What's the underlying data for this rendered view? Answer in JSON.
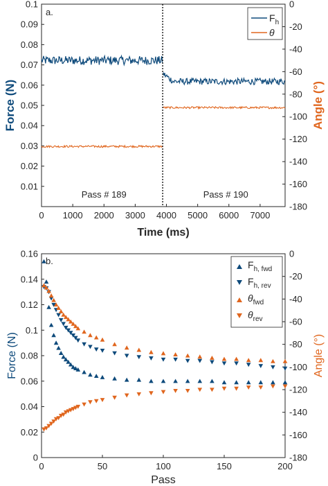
{
  "colors": {
    "blue": "#0e4a7b",
    "orange": "#e0661e",
    "axis": "#262626"
  },
  "chart_data": [
    {
      "type": "line",
      "panel_label": "a.",
      "xlabel": "Time (ms)",
      "ylabel_left": "Force (N)",
      "ylabel_right": "Angle (°)",
      "xlim": [
        0,
        7800
      ],
      "ylim_left": [
        0,
        0.1
      ],
      "ylim_right": [
        -180,
        0
      ],
      "xticks": [
        0,
        1000,
        2000,
        3000,
        4000,
        5000,
        6000,
        7000
      ],
      "xtick_labels": [
        "0",
        "1000",
        "2000",
        "3000",
        "4000",
        "5000",
        "6000",
        "7000"
      ],
      "yticks_left": [
        0.01,
        0.02,
        0.03,
        0.04,
        0.05,
        0.06,
        0.07,
        0.08,
        0.09,
        0.1
      ],
      "ytick_labels_left": [
        "0.01",
        "0.02",
        "0.03",
        "0.04",
        "0.05",
        "0.06",
        "0.07",
        "0.08",
        "0.09",
        "0.1"
      ],
      "yticks_right": [
        -180,
        -160,
        -140,
        -120,
        -100,
        -80,
        -60,
        -40,
        -20,
        0
      ],
      "ytick_labels_right": [
        "-180",
        "-160",
        "-140",
        "-120",
        "-100",
        "-80",
        "-60",
        "-40",
        "-20",
        "0"
      ],
      "divider_x": 3880,
      "annotations": [
        {
          "text": "Pass # 189",
          "x": 2000,
          "y": 0.0045
        },
        {
          "text": "Pass # 190",
          "x": 5900,
          "y": 0.0045
        }
      ],
      "legend_position": "top-right",
      "series": [
        {
          "name": "F",
          "name_sub": "h",
          "axis": "left",
          "color": "#0e4a7b",
          "segments": [
            {
              "x_start": 0,
              "x_end": 3870,
              "level": 0.0722,
              "noise": 0.0022
            },
            {
              "x_start": 3900,
              "x_end": 7800,
              "level": 0.0618,
              "noise": 0.0016
            }
          ]
        },
        {
          "name": "θ",
          "axis": "right",
          "color": "#e0661e",
          "segments": [
            {
              "x_start": 0,
              "x_end": 3870,
              "level": -126.5,
              "noise": 0.9
            },
            {
              "x_start": 3900,
              "x_end": 7800,
              "level": -92.0,
              "noise": 0.9
            }
          ]
        }
      ]
    },
    {
      "type": "scatter",
      "panel_label": "b.",
      "xlabel": "Pass",
      "ylabel_left": "Force (N)",
      "ylabel_right": "Angle (°)",
      "xlim": [
        0,
        200
      ],
      "ylim_left": [
        0,
        0.16
      ],
      "ylim_right": [
        -180,
        0
      ],
      "xticks": [
        0,
        50,
        100,
        150,
        200
      ],
      "xtick_labels": [
        "0",
        "50",
        "100",
        "150",
        "200"
      ],
      "yticks_left": [
        0,
        0.02,
        0.04,
        0.06,
        0.08,
        0.1,
        0.12,
        0.14,
        0.16
      ],
      "ytick_labels_left": [
        "0",
        "0.02",
        "0.04",
        "0.06",
        "0.08",
        "0.1",
        "0.12",
        "0.14",
        "0.16"
      ],
      "yticks_right": [
        -180,
        -160,
        -140,
        -120,
        -100,
        -80,
        -60,
        -40,
        -20,
        0
      ],
      "ytick_labels_right": [
        "-180",
        "-160",
        "-140",
        "-120",
        "-100",
        "-80",
        "-60",
        "-40",
        "-20",
        "0"
      ],
      "legend_position": "top-right",
      "series": [
        {
          "name": "F",
          "name_sub": "h, fwd",
          "axis": "left",
          "marker": "triangle-up",
          "color": "#0e4a7b",
          "points": [
            [
              2,
              0.154
            ],
            [
              4,
              0.138
            ],
            [
              6,
              0.118
            ],
            [
              8,
              0.104
            ],
            [
              10,
              0.096
            ],
            [
              12,
              0.09
            ],
            [
              14,
              0.086
            ],
            [
              16,
              0.082
            ],
            [
              18,
              0.079
            ],
            [
              20,
              0.077
            ],
            [
              22,
              0.075
            ],
            [
              24,
              0.073
            ],
            [
              26,
              0.071
            ],
            [
              28,
              0.07
            ],
            [
              30,
              0.069
            ],
            [
              35,
              0.067
            ],
            [
              40,
              0.065
            ],
            [
              45,
              0.064
            ],
            [
              50,
              0.063
            ],
            [
              60,
              0.062
            ],
            [
              70,
              0.061
            ],
            [
              80,
              0.061
            ],
            [
              90,
              0.06
            ],
            [
              100,
              0.06
            ],
            [
              110,
              0.06
            ],
            [
              120,
              0.06
            ],
            [
              130,
              0.06
            ],
            [
              140,
              0.06
            ],
            [
              150,
              0.059
            ],
            [
              160,
              0.059
            ],
            [
              170,
              0.059
            ],
            [
              180,
              0.059
            ],
            [
              190,
              0.059
            ],
            [
              200,
              0.059
            ]
          ]
        },
        {
          "name": "F",
          "name_sub": "h, rev",
          "axis": "left",
          "marker": "triangle-down",
          "color": "#0e4a7b",
          "points": [
            [
              2,
              0.134
            ],
            [
              4,
              0.133
            ],
            [
              6,
              0.13
            ],
            [
              8,
              0.125
            ],
            [
              10,
              0.12
            ],
            [
              12,
              0.116
            ],
            [
              14,
              0.112
            ],
            [
              16,
              0.108
            ],
            [
              18,
              0.105
            ],
            [
              20,
              0.102
            ],
            [
              22,
              0.1
            ],
            [
              24,
              0.098
            ],
            [
              26,
              0.096
            ],
            [
              28,
              0.094
            ],
            [
              30,
              0.092
            ],
            [
              35,
              0.089
            ],
            [
              40,
              0.087
            ],
            [
              45,
              0.085
            ],
            [
              50,
              0.084
            ],
            [
              60,
              0.082
            ],
            [
              70,
              0.08
            ],
            [
              80,
              0.079
            ],
            [
              90,
              0.078
            ],
            [
              100,
              0.077
            ],
            [
              110,
              0.077
            ],
            [
              120,
              0.076
            ],
            [
              130,
              0.076
            ],
            [
              140,
              0.075
            ],
            [
              150,
              0.074
            ],
            [
              160,
              0.074
            ],
            [
              170,
              0.073
            ],
            [
              180,
              0.072
            ],
            [
              190,
              0.071
            ],
            [
              200,
              0.07
            ]
          ]
        },
        {
          "name": "θ",
          "name_sub": "fwd",
          "axis": "right",
          "marker": "triangle-up",
          "color": "#e0661e",
          "points": [
            [
              2,
              -28
            ],
            [
              4,
              -30
            ],
            [
              6,
              -33
            ],
            [
              8,
              -37
            ],
            [
              10,
              -41
            ],
            [
              12,
              -45
            ],
            [
              14,
              -48
            ],
            [
              16,
              -51
            ],
            [
              18,
              -54
            ],
            [
              20,
              -56
            ],
            [
              22,
              -58
            ],
            [
              24,
              -60
            ],
            [
              26,
              -62
            ],
            [
              28,
              -64
            ],
            [
              30,
              -66
            ],
            [
              35,
              -69
            ],
            [
              40,
              -72
            ],
            [
              45,
              -74
            ],
            [
              50,
              -76
            ],
            [
              60,
              -80
            ],
            [
              70,
              -83
            ],
            [
              80,
              -85
            ],
            [
              90,
              -87
            ],
            [
              100,
              -88
            ],
            [
              110,
              -89
            ],
            [
              120,
              -90
            ],
            [
              130,
              -91
            ],
            [
              140,
              -92
            ],
            [
              150,
              -93
            ],
            [
              160,
              -93
            ],
            [
              170,
              -94
            ],
            [
              180,
              -94
            ],
            [
              190,
              -95
            ],
            [
              200,
              -95
            ]
          ]
        },
        {
          "name": "θ",
          "name_sub": "rev",
          "axis": "right",
          "marker": "triangle-down",
          "color": "#e0661e",
          "points": [
            [
              2,
              -155
            ],
            [
              4,
              -154
            ],
            [
              6,
              -152
            ],
            [
              8,
              -150
            ],
            [
              10,
              -148
            ],
            [
              12,
              -146
            ],
            [
              14,
              -145
            ],
            [
              16,
              -143
            ],
            [
              18,
              -142
            ],
            [
              20,
              -140
            ],
            [
              22,
              -139
            ],
            [
              24,
              -138
            ],
            [
              26,
              -137
            ],
            [
              28,
              -136
            ],
            [
              30,
              -135
            ],
            [
              35,
              -133
            ],
            [
              40,
              -131
            ],
            [
              45,
              -130
            ],
            [
              50,
              -129
            ],
            [
              60,
              -127
            ],
            [
              70,
              -125
            ],
            [
              80,
              -124
            ],
            [
              90,
              -123
            ],
            [
              100,
              -122
            ],
            [
              110,
              -121
            ],
            [
              120,
              -121
            ],
            [
              130,
              -120
            ],
            [
              140,
              -120
            ],
            [
              150,
              -119
            ],
            [
              160,
              -119
            ],
            [
              170,
              -118
            ],
            [
              180,
              -118
            ],
            [
              190,
              -117
            ],
            [
              200,
              -117
            ]
          ]
        }
      ]
    }
  ]
}
